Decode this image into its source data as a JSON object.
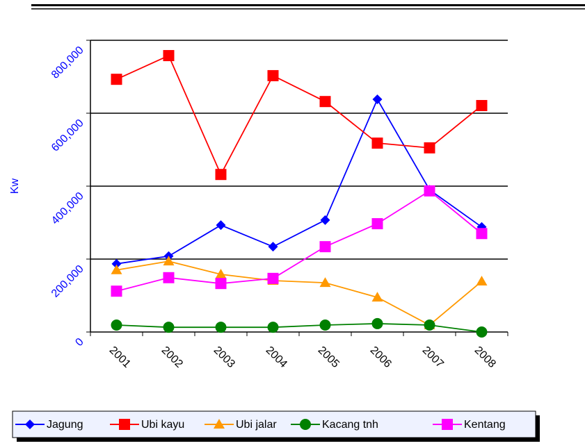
{
  "chart_data": {
    "type": "line",
    "y_label": "Kw",
    "categories": [
      "2001",
      "2002",
      "2003",
      "2004",
      "2005",
      "2006",
      "2007",
      "2008"
    ],
    "series": [
      {
        "name": "Jagung",
        "color": "#0000ff",
        "marker": "diamond",
        "values": [
          187000,
          208000,
          293000,
          234000,
          307000,
          638000,
          390000,
          288000
        ]
      },
      {
        "name": "Ubi kayu",
        "color": "#ff0000",
        "marker": "square",
        "values": [
          693000,
          758000,
          432000,
          703000,
          632000,
          518000,
          505000,
          621000
        ]
      },
      {
        "name": "Ubi jalar",
        "color": "#ff9900",
        "marker": "triangle",
        "values": [
          170000,
          194000,
          158000,
          141000,
          135000,
          95000,
          19000,
          139000
        ]
      },
      {
        "name": "Kacang tnh",
        "color": "#008000",
        "marker": "circle",
        "values": [
          19000,
          13000,
          13000,
          13000,
          19000,
          23000,
          19000,
          0
        ]
      },
      {
        "name": "Kentang",
        "color": "#ff00ff",
        "marker": "square",
        "values": [
          112000,
          149000,
          133000,
          147000,
          234000,
          297000,
          387000,
          270000
        ]
      }
    ],
    "ylim": [
      0,
      800000
    ],
    "yticks": [
      0,
      {
        "value": 200000,
        "label": "200,000"
      },
      {
        "value": 400000,
        "label": "400,000"
      },
      {
        "value": 600000,
        "label": "600,000"
      },
      {
        "value": 800000,
        "label": "800,000"
      }
    ],
    "grid": true,
    "legend": "bottom"
  }
}
